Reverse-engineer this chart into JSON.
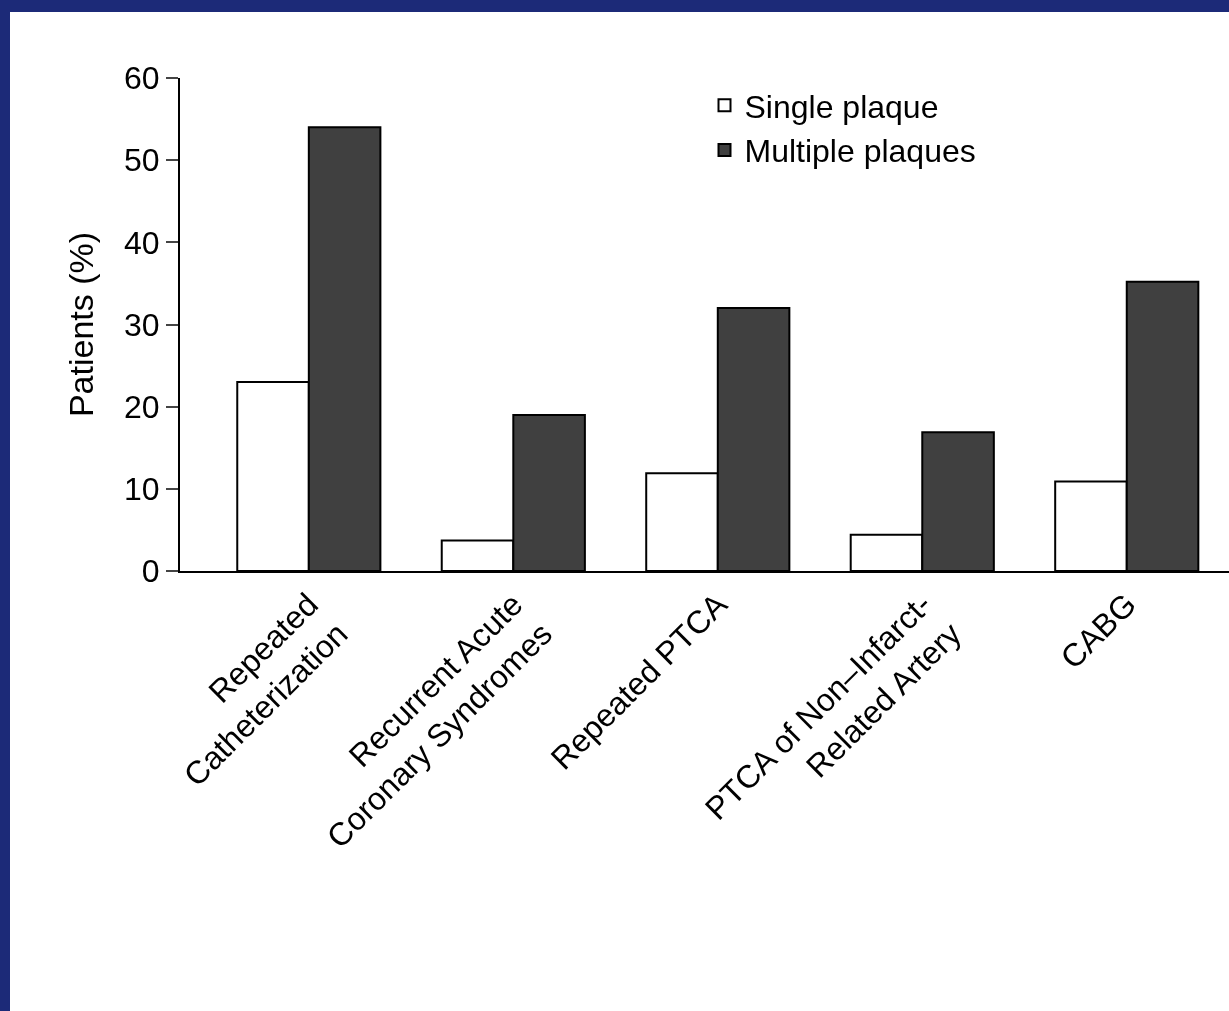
{
  "chart_data": {
    "type": "bar",
    "ylabel": "Patients (%)",
    "categories": [
      "Repeated\nCatheterization",
      "Recurrent Acute\nCoronary Syndromes",
      "Repeated PTCA",
      "PTCA of Non–Infarct-\nRelated Artery",
      "CABG"
    ],
    "series": [
      {
        "name": "Single plaque",
        "color": "#ffffff",
        "values": [
          23,
          3.7,
          11.9,
          4.4,
          10.9
        ]
      },
      {
        "name": "Multiple plaques",
        "color": "#404040",
        "values": [
          54,
          19,
          32,
          16.9,
          35.2
        ]
      }
    ],
    "ylim": [
      0,
      60
    ],
    "yticks": [
      0,
      10,
      20,
      30,
      40,
      50,
      60
    ],
    "grid": false,
    "legend": "top right"
  }
}
